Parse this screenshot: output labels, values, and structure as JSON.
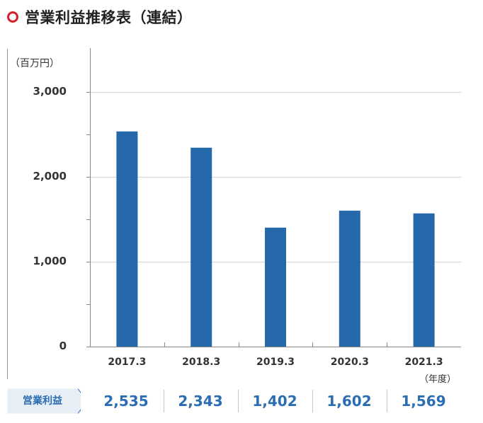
{
  "heading": {
    "title": "営業利益推移表（連結）"
  },
  "chart_data": {
    "type": "bar",
    "title": "営業利益推移表（連結）",
    "unit_label": "（百万円）",
    "x_unit_label": "（年度）",
    "categories": [
      "2017.3",
      "2018.3",
      "2019.3",
      "2020.3",
      "2021.3"
    ],
    "series": [
      {
        "name": "営業利益",
        "values": [
          2535,
          2343,
          1402,
          1602,
          1569
        ]
      }
    ],
    "ylim": [
      0,
      3000
    ],
    "yticks": [
      "3,000",
      "2,000",
      "1,000",
      "0"
    ],
    "grid": true,
    "bar_color": "#2569aa"
  },
  "table": {
    "row_label": "営業利益",
    "values": [
      "2,535",
      "2,343",
      "1,402",
      "1,602",
      "1,569"
    ]
  },
  "colors": {
    "accent": "#d2232a",
    "value_text": "#2a6db2",
    "bar": "#2569aa"
  }
}
